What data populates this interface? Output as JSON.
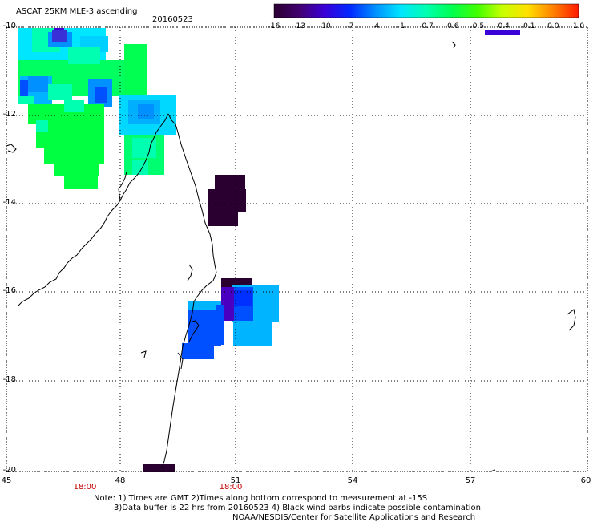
{
  "title": "ASCAT 25KM MLE-3 ascending",
  "date": "20160523",
  "colorbar": {
    "labels": [
      "-16",
      "-13",
      "-10",
      "-7",
      "-4",
      "-1",
      "-0.7",
      "-0.6",
      "-0.5",
      "-0.4",
      "-0.1",
      "0.0",
      "1.0"
    ],
    "colors": [
      "#2a0030",
      "#420070",
      "#3a00d8",
      "#0028ff",
      "#0090ff",
      "#00e6ff",
      "#00ffb0",
      "#00ff50",
      "#40ff00",
      "#c8ff00",
      "#ffe000",
      "#ff8000",
      "#ff1a00"
    ]
  },
  "map": {
    "lat_labels": [
      "-10",
      "-12",
      "-14",
      "-16",
      "-18",
      "-20"
    ],
    "lon_labels": [
      "45",
      "48",
      "51",
      "54",
      "57",
      "60"
    ],
    "time_labels": [
      "18:00",
      "18:00"
    ],
    "grid_color": "#000000",
    "coast_color": "#000000"
  },
  "notes": {
    "line1": "Note: 1) Times are GMT 2)Times along bottom correspond to measurement at -15S",
    "line2": "3)Data buffer is 22 hrs from 20160523 4) Black wind barbs indicate possible contamination",
    "line3": "NOAA/NESDIS/Center for Satellite Applications and Research"
  }
}
